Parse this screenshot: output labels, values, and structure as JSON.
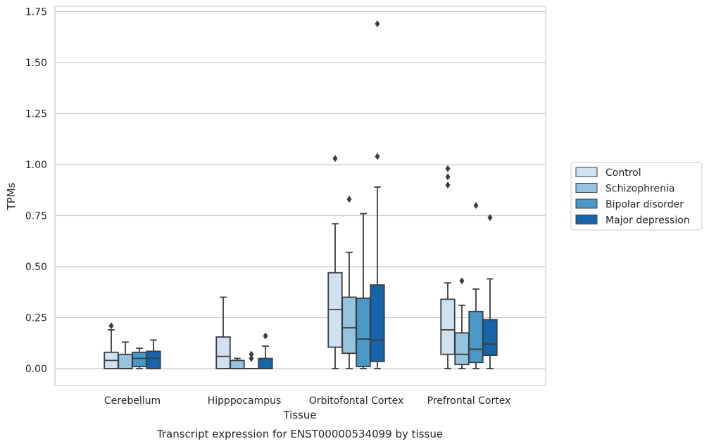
{
  "chart_data": {
    "type": "box",
    "title": "",
    "caption": "Transcript expression for ENST00000534099 by tissue",
    "xlabel": "Tissue",
    "ylabel": "TPMs",
    "ylim": [
      -0.08,
      1.77
    ],
    "yticks": [
      "0.00",
      "0.25",
      "0.50",
      "0.75",
      "1.00",
      "1.25",
      "1.50",
      "1.75"
    ],
    "grid": "horizontal",
    "legend_position": "right",
    "categories": [
      "Cerebellum",
      "Hipppocampus",
      "Orbitofontal Cortex",
      "Prefrontal Cortex"
    ],
    "series": [
      {
        "name": "Control",
        "color": "#d0e1f2",
        "boxes": [
          {
            "min": 0.0,
            "q1": 0.0,
            "median": 0.04,
            "q3": 0.08,
            "max": 0.19,
            "outliers": [
              0.21
            ]
          },
          {
            "min": 0.0,
            "q1": 0.0,
            "median": 0.06,
            "q3": 0.155,
            "max": 0.35,
            "outliers": []
          },
          {
            "min": 0.0,
            "q1": 0.105,
            "median": 0.29,
            "q3": 0.47,
            "max": 0.71,
            "outliers": [
              1.03
            ]
          },
          {
            "min": 0.0,
            "q1": 0.07,
            "median": 0.19,
            "q3": 0.34,
            "max": 0.42,
            "outliers": [
              0.9,
              0.94,
              0.98
            ]
          }
        ]
      },
      {
        "name": "Schizophrenia",
        "color": "#94c4df",
        "boxes": [
          {
            "min": 0.0,
            "q1": 0.0,
            "median": 0.0,
            "q3": 0.07,
            "max": 0.13,
            "outliers": []
          },
          {
            "min": 0.0,
            "q1": 0.0,
            "median": 0.0,
            "q3": 0.04,
            "max": 0.05,
            "outliers": []
          },
          {
            "min": 0.0,
            "q1": 0.075,
            "median": 0.2,
            "q3": 0.35,
            "max": 0.57,
            "outliers": [
              0.83
            ]
          },
          {
            "min": 0.0,
            "q1": 0.02,
            "median": 0.07,
            "q3": 0.175,
            "max": 0.31,
            "outliers": [
              0.43
            ]
          }
        ]
      },
      {
        "name": "Bipolar disorder",
        "color": "#4a98c9",
        "boxes": [
          {
            "min": 0.0,
            "q1": 0.01,
            "median": 0.05,
            "q3": 0.08,
            "max": 0.1,
            "outliers": []
          },
          {
            "min": 0.0,
            "q1": 0.0,
            "median": 0.0,
            "q3": 0.0,
            "max": 0.0,
            "outliers": [
              0.05,
              0.07
            ]
          },
          {
            "min": 0.0,
            "q1": 0.01,
            "median": 0.145,
            "q3": 0.345,
            "max": 0.76,
            "outliers": []
          },
          {
            "min": 0.0,
            "q1": 0.03,
            "median": 0.095,
            "q3": 0.28,
            "max": 0.39,
            "outliers": [
              0.8
            ]
          }
        ]
      },
      {
        "name": "Major depression",
        "color": "#1764ab",
        "boxes": [
          {
            "min": 0.0,
            "q1": 0.0,
            "median": 0.05,
            "q3": 0.085,
            "max": 0.14,
            "outliers": []
          },
          {
            "min": 0.0,
            "q1": 0.0,
            "median": 0.0,
            "q3": 0.05,
            "max": 0.11,
            "outliers": [
              0.16
            ]
          },
          {
            "min": 0.0,
            "q1": 0.035,
            "median": 0.14,
            "q3": 0.41,
            "max": 0.89,
            "outliers": [
              1.04,
              1.69
            ]
          },
          {
            "min": 0.0,
            "q1": 0.065,
            "median": 0.12,
            "q3": 0.24,
            "max": 0.44,
            "outliers": [
              0.74
            ]
          }
        ]
      }
    ]
  }
}
